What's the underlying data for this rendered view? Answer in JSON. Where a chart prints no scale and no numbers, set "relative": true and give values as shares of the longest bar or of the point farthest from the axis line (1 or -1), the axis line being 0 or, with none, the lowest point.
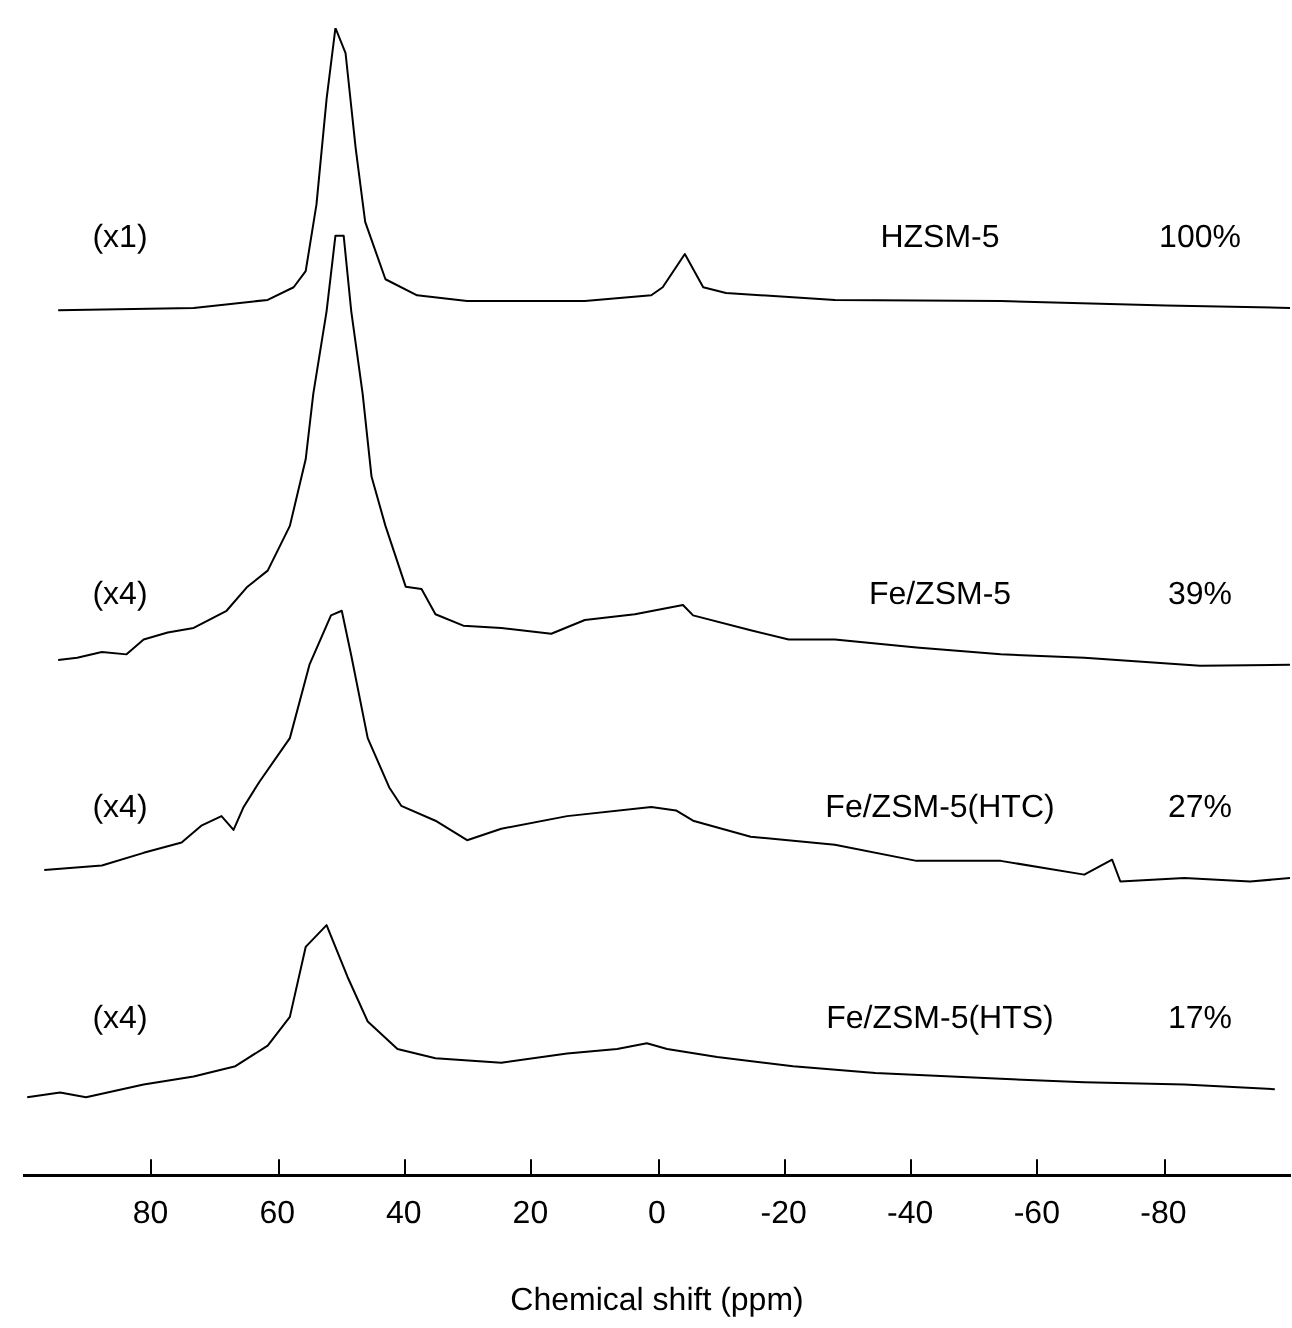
{
  "chart_data": {
    "type": "line",
    "relative": true,
    "xlabel": "Chemical shift (ppm)",
    "xlim": [
      100,
      -100
    ],
    "xticks": [
      80,
      60,
      40,
      20,
      0,
      -20,
      -40,
      -60,
      -80
    ],
    "annotations": [
      "(x1)",
      "100%",
      "(x4)",
      "39%",
      "(x4)",
      "27%",
      "(x4)",
      "17%"
    ],
    "series": [
      {
        "name": "HZSM-5",
        "color": "#000000",
        "x": [
          94.6,
          73.2,
          61.5,
          57.4,
          55.5,
          53.8,
          52.2,
          50.8,
          49.2,
          47.6,
          46.1,
          42.9,
          37.9,
          30.0,
          11.4,
          0.9,
          -0.9,
          -4.4,
          -7.3,
          -10.9,
          -28.1,
          -54.3,
          -80.4,
          -100
        ],
        "values": [
          0.754,
          0.756,
          0.763,
          0.774,
          0.788,
          0.846,
          0.938,
          1,
          0.978,
          0.895,
          0.831,
          0.781,
          0.767,
          0.762,
          0.762,
          0.767,
          0.774,
          0.803,
          0.774,
          0.769,
          0.763,
          0.762,
          0.758,
          0.756
        ]
      },
      {
        "name": "Fe/ZSM-5",
        "color": "#000000",
        "x": [
          94.6,
          91.6,
          87.7,
          83.8,
          81.1,
          77.3,
          73.2,
          68.0,
          64.7,
          61.5,
          58.0,
          55.5,
          54.3,
          52.2,
          50.8,
          49.5,
          48.3,
          46.5,
          45.1,
          42.9,
          39.7,
          37.2,
          35.0,
          30.6,
          24.6,
          16.7,
          11.4,
          3.5,
          -4.1,
          -5.7,
          -14.8,
          -20.8,
          -28.1,
          -41.0,
          -54.3,
          -67.5,
          -85.8,
          -100
        ],
        "values": [
          0.449,
          0.451,
          0.456,
          0.454,
          0.467,
          0.473,
          0.477,
          0.492,
          0.513,
          0.527,
          0.566,
          0.624,
          0.681,
          0.753,
          0.819,
          0.819,
          0.753,
          0.681,
          0.609,
          0.566,
          0.513,
          0.511,
          0.489,
          0.479,
          0.477,
          0.472,
          0.484,
          0.489,
          0.497,
          0.488,
          0.475,
          0.467,
          0.467,
          0.46,
          0.454,
          0.451,
          0.444,
          0.445
        ]
      },
      {
        "name": "Fe/ZSM-5(HTC)",
        "color": "#000000",
        "x": [
          96.8,
          87.7,
          81.1,
          75.1,
          71.9,
          68.8,
          66.9,
          65.3,
          62.8,
          58.0,
          54.9,
          51.5,
          49.8,
          48.3,
          45.7,
          42.3,
          40.4,
          35.0,
          30.0,
          24.6,
          14.2,
          0.9,
          -3.0,
          -5.7,
          -14.8,
          -28.1,
          -41.0,
          -54.3,
          -67.5,
          -71.9,
          -73.2,
          -83.3,
          -93.7,
          -100
        ],
        "values": [
          0.266,
          0.27,
          0.281,
          0.29,
          0.305,
          0.313,
          0.301,
          0.321,
          0.343,
          0.381,
          0.445,
          0.488,
          0.492,
          0.453,
          0.381,
          0.338,
          0.322,
          0.309,
          0.292,
          0.302,
          0.313,
          0.321,
          0.318,
          0.309,
          0.295,
          0.288,
          0.274,
          0.274,
          0.262,
          0.275,
          0.256,
          0.259,
          0.256,
          0.259
        ]
      },
      {
        "name": "Fe/ZSM-5(HTS)",
        "color": "#000000",
        "x": [
          99.5,
          94.3,
          90.2,
          81.1,
          73.2,
          66.6,
          61.5,
          58.0,
          55.5,
          52.2,
          48.9,
          45.7,
          41.0,
          35.0,
          24.6,
          14.2,
          6.3,
          1.6,
          -1.6,
          -9.5,
          -21.5,
          -34.5,
          -54.3,
          -67.5,
          -83.3,
          -97.6
        ],
        "values": [
          0.068,
          0.072,
          0.068,
          0.079,
          0.086,
          0.095,
          0.113,
          0.138,
          0.199,
          0.218,
          0.173,
          0.134,
          0.11,
          0.102,
          0.098,
          0.106,
          0.11,
          0.115,
          0.11,
          0.103,
          0.095,
          0.089,
          0.084,
          0.081,
          0.079,
          0.075
        ]
      }
    ]
  }
}
